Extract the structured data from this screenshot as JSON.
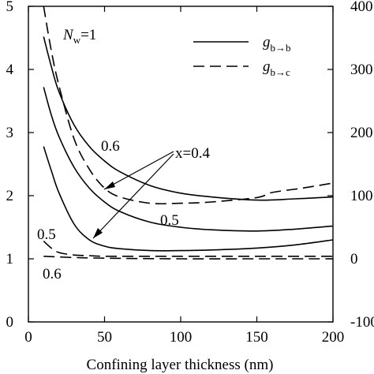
{
  "chart_data": {
    "type": "line",
    "xlabel": "Confining layer thickness (nm)",
    "x_ticks": [
      "0",
      "50",
      "100",
      "150",
      "200"
    ],
    "y_left_ticks": [
      "0",
      "1",
      "2",
      "3",
      "4",
      "5"
    ],
    "y_right_ticks": [
      "-100",
      "0",
      "100",
      "200",
      "300",
      "400"
    ],
    "xlim": [
      0,
      200
    ],
    "ylim_left": [
      0,
      5
    ],
    "ylim_right": [
      -100,
      400
    ],
    "panel_label": {
      "base": "N",
      "sub": "w",
      "rest": "=1"
    },
    "legend": [
      {
        "style": "solid",
        "base": "g",
        "sub": "b→b"
      },
      {
        "style": "dashed",
        "base": "g",
        "sub": "b→c"
      }
    ],
    "annotations": {
      "x_label": "x=0.4",
      "solid_06": "0.6",
      "solid_05": "0.5",
      "dashed_05": "0.5",
      "dashed_06": "0.6"
    },
    "series": [
      {
        "style": "solid",
        "label": "0.6",
        "x": [
          10,
          15,
          20,
          30,
          40,
          50,
          60,
          80,
          100,
          120,
          150,
          175,
          200
        ],
        "y": [
          4.52,
          4.05,
          3.65,
          3.12,
          2.78,
          2.55,
          2.38,
          2.16,
          2.04,
          1.98,
          1.93,
          1.95,
          1.98
        ]
      },
      {
        "style": "solid",
        "label": "0.5",
        "x": [
          10,
          15,
          20,
          30,
          40,
          50,
          60,
          80,
          100,
          120,
          150,
          175,
          200
        ],
        "y": [
          3.72,
          3.28,
          2.94,
          2.45,
          2.12,
          1.9,
          1.75,
          1.58,
          1.5,
          1.46,
          1.44,
          1.47,
          1.52
        ]
      },
      {
        "style": "solid",
        "label": "0.4",
        "x": [
          10,
          15,
          20,
          30,
          40,
          50,
          60,
          80,
          100,
          120,
          150,
          175,
          200
        ],
        "y": [
          2.78,
          2.4,
          2.05,
          1.55,
          1.3,
          1.2,
          1.16,
          1.13,
          1.13,
          1.14,
          1.17,
          1.22,
          1.3
        ]
      },
      {
        "style": "dashed",
        "label": "0.4",
        "x": [
          10,
          15,
          20,
          30,
          40,
          50,
          60,
          80,
          100,
          120,
          150,
          160,
          180,
          200
        ],
        "y": [
          5.0,
          4.3,
          3.75,
          2.9,
          2.42,
          2.12,
          1.98,
          1.88,
          1.88,
          1.9,
          1.97,
          2.05,
          2.12,
          2.2
        ]
      },
      {
        "style": "dashed",
        "label": "0.5",
        "x": [
          10,
          15,
          20,
          30,
          40,
          50,
          75,
          100,
          150,
          200
        ],
        "y": [
          1.28,
          1.17,
          1.1,
          1.06,
          1.05,
          1.04,
          1.04,
          1.04,
          1.04,
          1.04
        ]
      },
      {
        "style": "dashed",
        "label": "0.6",
        "x": [
          10,
          30,
          50,
          100,
          150,
          200
        ],
        "y": [
          1.04,
          1.02,
          1.01,
          1.0,
          1.0,
          1.0
        ]
      }
    ]
  }
}
